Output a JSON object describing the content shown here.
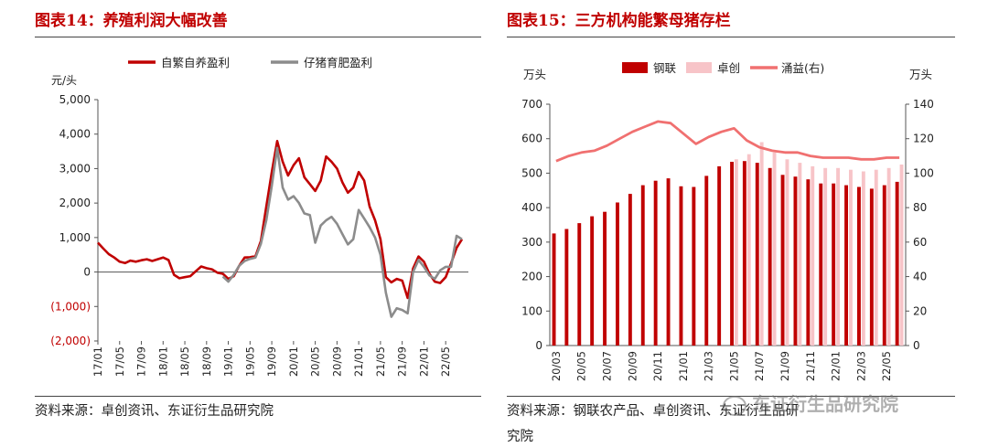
{
  "chart_data": [
    {
      "type": "line",
      "title": "图表14：养殖利润大幅改善",
      "ylabel": "元/头",
      "ylim": [
        -2000,
        5000
      ],
      "ytick_labels": [
        "5,000",
        "4,000",
        "3,000",
        "2,000",
        "1,000",
        "0",
        "(1,000)",
        "(2,000)"
      ],
      "ytick_values": [
        5000,
        4000,
        3000,
        2000,
        1000,
        0,
        -1000,
        -2000
      ],
      "ytick_colors": [
        "#222",
        "#222",
        "#222",
        "#222",
        "#222",
        "#222",
        "#c00000",
        "#c00000"
      ],
      "x_tick_labels": [
        "17/01",
        "17/05",
        "17/09",
        "18/01",
        "18/05",
        "18/09",
        "19/01",
        "19/05",
        "19/09",
        "20/01",
        "20/05",
        "20/09",
        "21/01",
        "21/05",
        "21/09",
        "22/01",
        "22/05"
      ],
      "x_range": [
        "2017-01",
        "2022-08"
      ],
      "legend_position": "top",
      "series": [
        {
          "name": "自繁自养盈利",
          "color": "#c00000",
          "points": [
            [
              "2017-01",
              850
            ],
            [
              "2017-02",
              680
            ],
            [
              "2017-03",
              520
            ],
            [
              "2017-04",
              420
            ],
            [
              "2017-05",
              300
            ],
            [
              "2017-06",
              260
            ],
            [
              "2017-07",
              330
            ],
            [
              "2017-08",
              300
            ],
            [
              "2017-09",
              340
            ],
            [
              "2017-10",
              370
            ],
            [
              "2017-11",
              320
            ],
            [
              "2017-12",
              370
            ],
            [
              "2018-01",
              420
            ],
            [
              "2018-02",
              350
            ],
            [
              "2018-03",
              -80
            ],
            [
              "2018-04",
              -180
            ],
            [
              "2018-05",
              -150
            ],
            [
              "2018-06",
              -120
            ],
            [
              "2018-07",
              20
            ],
            [
              "2018-08",
              160
            ],
            [
              "2018-09",
              110
            ],
            [
              "2018-10",
              80
            ],
            [
              "2018-11",
              -20
            ],
            [
              "2018-12",
              -50
            ],
            [
              "2019-01",
              -200
            ],
            [
              "2019-02",
              -120
            ],
            [
              "2019-03",
              180
            ],
            [
              "2019-04",
              420
            ],
            [
              "2019-05",
              430
            ],
            [
              "2019-06",
              460
            ],
            [
              "2019-07",
              900
            ],
            [
              "2019-08",
              1900
            ],
            [
              "2019-09",
              2900
            ],
            [
              "2019-10",
              3800
            ],
            [
              "2019-11",
              3200
            ],
            [
              "2019-12",
              2800
            ],
            [
              "2020-01",
              3100
            ],
            [
              "2020-02",
              3300
            ],
            [
              "2020-03",
              2750
            ],
            [
              "2020-04",
              2550
            ],
            [
              "2020-05",
              2350
            ],
            [
              "2020-06",
              2650
            ],
            [
              "2020-07",
              3350
            ],
            [
              "2020-08",
              3200
            ],
            [
              "2020-09",
              3000
            ],
            [
              "2020-10",
              2600
            ],
            [
              "2020-11",
              2300
            ],
            [
              "2020-12",
              2450
            ],
            [
              "2021-01",
              2900
            ],
            [
              "2021-02",
              2650
            ],
            [
              "2021-03",
              1900
            ],
            [
              "2021-04",
              1500
            ],
            [
              "2021-05",
              950
            ],
            [
              "2021-06",
              -150
            ],
            [
              "2021-07",
              -300
            ],
            [
              "2021-08",
              -200
            ],
            [
              "2021-09",
              -250
            ],
            [
              "2021-10",
              -750
            ],
            [
              "2021-11",
              100
            ],
            [
              "2021-12",
              450
            ],
            [
              "2022-01",
              300
            ],
            [
              "2022-02",
              -50
            ],
            [
              "2022-03",
              -280
            ],
            [
              "2022-04",
              -320
            ],
            [
              "2022-05",
              -150
            ],
            [
              "2022-06",
              250
            ],
            [
              "2022-07",
              700
            ],
            [
              "2022-08",
              950
            ]
          ]
        },
        {
          "name": "仔猪育肥盈利",
          "color": "#8c8c8c",
          "points": [
            [
              "2018-12",
              -130
            ],
            [
              "2019-01",
              -280
            ],
            [
              "2019-02",
              -80
            ],
            [
              "2019-03",
              180
            ],
            [
              "2019-04",
              320
            ],
            [
              "2019-05",
              380
            ],
            [
              "2019-06",
              420
            ],
            [
              "2019-07",
              820
            ],
            [
              "2019-08",
              1500
            ],
            [
              "2019-09",
              2500
            ],
            [
              "2019-10",
              3600
            ],
            [
              "2019-11",
              2450
            ],
            [
              "2019-12",
              2100
            ],
            [
              "2020-01",
              2200
            ],
            [
              "2020-02",
              2000
            ],
            [
              "2020-03",
              1700
            ],
            [
              "2020-04",
              1650
            ],
            [
              "2020-05",
              850
            ],
            [
              "2020-06",
              1350
            ],
            [
              "2020-07",
              1500
            ],
            [
              "2020-08",
              1600
            ],
            [
              "2020-09",
              1400
            ],
            [
              "2020-10",
              1100
            ],
            [
              "2020-11",
              800
            ],
            [
              "2020-12",
              950
            ],
            [
              "2021-01",
              1800
            ],
            [
              "2021-02",
              1550
            ],
            [
              "2021-03",
              1300
            ],
            [
              "2021-04",
              1000
            ],
            [
              "2021-05",
              500
            ],
            [
              "2021-06",
              -600
            ],
            [
              "2021-07",
              -1300
            ],
            [
              "2021-08",
              -1050
            ],
            [
              "2021-09",
              -1100
            ],
            [
              "2021-10",
              -1200
            ],
            [
              "2021-11",
              0
            ],
            [
              "2021-12",
              350
            ],
            [
              "2022-01",
              150
            ],
            [
              "2022-02",
              -100
            ],
            [
              "2022-03",
              -200
            ],
            [
              "2022-04",
              50
            ],
            [
              "2022-05",
              150
            ],
            [
              "2022-06",
              150
            ],
            [
              "2022-07",
              1050
            ],
            [
              "2022-08",
              950
            ]
          ]
        }
      ]
    },
    {
      "type": "bar",
      "title": "图表15：三方机构能繁母猪存栏",
      "ylabel": "万头",
      "y2label": "万头",
      "ylim": [
        0,
        700
      ],
      "y2lim": [
        0,
        140
      ],
      "ytick_labels": [
        "700",
        "600",
        "500",
        "400",
        "300",
        "200",
        "100",
        "0"
      ],
      "y2tick_labels": [
        "140",
        "120",
        "100",
        "80",
        "60",
        "40",
        "20",
        "0"
      ],
      "legend_position": "top",
      "categories": [
        "20/03",
        "20/04",
        "20/05",
        "20/06",
        "20/07",
        "20/08",
        "20/09",
        "20/10",
        "20/11",
        "20/12",
        "21/01",
        "21/02",
        "21/03",
        "21/04",
        "21/05",
        "21/06",
        "21/07",
        "21/08",
        "21/09",
        "21/10",
        "21/11",
        "21/12",
        "22/01",
        "22/02",
        "22/03",
        "22/04",
        "22/05",
        "22/06"
      ],
      "x_tick_labels": [
        "20/03",
        "20/05",
        "20/07",
        "20/09",
        "20/11",
        "21/01",
        "21/03",
        "21/05",
        "21/07",
        "21/09",
        "21/11",
        "22/01",
        "22/03",
        "22/05"
      ],
      "series": [
        {
          "name": "钢联",
          "color": "#c00000",
          "axis": "left",
          "values": [
            325,
            338,
            355,
            375,
            388,
            415,
            440,
            465,
            478,
            485,
            462,
            460,
            492,
            520,
            533,
            535,
            530,
            515,
            495,
            490,
            482,
            470,
            470,
            465,
            460,
            455,
            465,
            475
          ]
        },
        {
          "name": "卓创",
          "color": "#f7c4c8",
          "axis": "left",
          "values": [
            null,
            null,
            null,
            null,
            null,
            null,
            null,
            null,
            null,
            null,
            null,
            null,
            null,
            null,
            540,
            555,
            590,
            560,
            540,
            530,
            520,
            515,
            515,
            510,
            505,
            510,
            515,
            525
          ]
        },
        {
          "name": "涌益(右)",
          "color": "#f07070",
          "axis": "right",
          "values": [
            107,
            110,
            112,
            113,
            116,
            120,
            124,
            127,
            130,
            129,
            123,
            117,
            121,
            124,
            126,
            119,
            115,
            113,
            112,
            112,
            110,
            109,
            109,
            109,
            108,
            108,
            109,
            109
          ]
        }
      ]
    }
  ],
  "sources": {
    "left": "资料来源：卓创资讯、东证衍生品研究院",
    "right_line1": "资料来源：钢联农产品、卓创资讯、东证衍生品研",
    "right_line2": "究院"
  },
  "watermark": "东证衍生品研究院"
}
